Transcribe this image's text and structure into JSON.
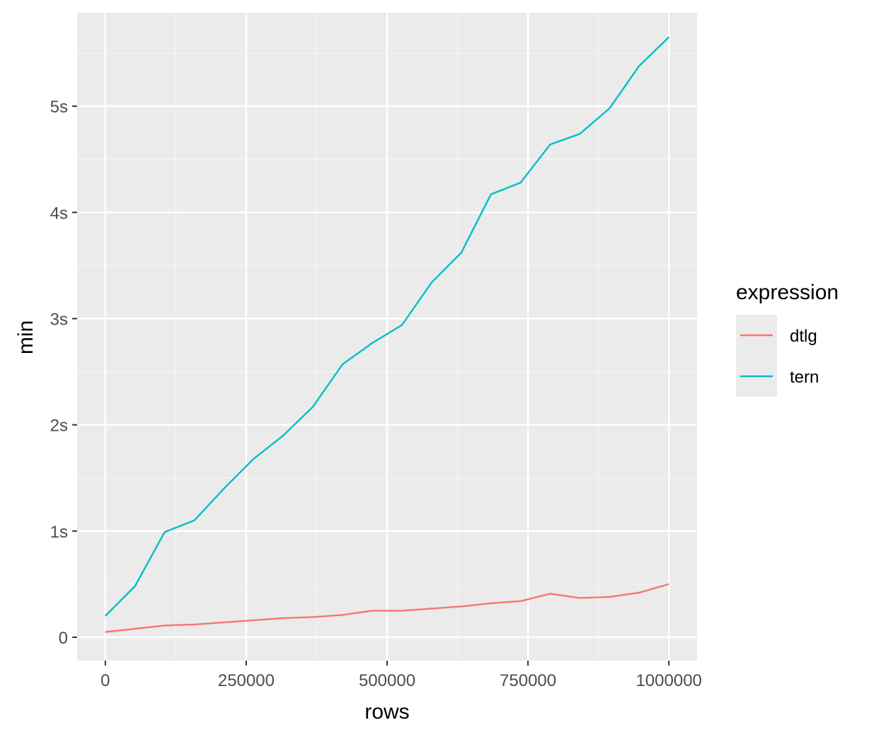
{
  "chart_data": {
    "type": "line",
    "xlabel": "rows",
    "ylabel": "min",
    "xlim": [
      -50000,
      1050000
    ],
    "ylim": [
      -0.22,
      5.88
    ],
    "x_ticks": [
      0,
      250000,
      500000,
      750000,
      1000000
    ],
    "x_tick_labels": [
      "0",
      "250000",
      "500000",
      "750000",
      "1000000"
    ],
    "y_ticks": [
      0,
      1,
      2,
      3,
      4,
      5
    ],
    "y_tick_labels": [
      "0",
      "1s",
      "2s",
      "3s",
      "4s",
      "5s"
    ],
    "grid": true,
    "legend": {
      "title": "expression",
      "position": "right"
    },
    "x": [
      1,
      52632,
      105264,
      157895,
      210527,
      263158,
      315790,
      368422,
      421053,
      473685,
      526316,
      578948,
      631580,
      684211,
      736843,
      789474,
      842106,
      894738,
      947369,
      1000000
    ],
    "series": [
      {
        "name": "dtlg",
        "color": "#F8766D",
        "values": [
          0.05,
          0.08,
          0.11,
          0.12,
          0.14,
          0.16,
          0.18,
          0.19,
          0.21,
          0.25,
          0.25,
          0.27,
          0.29,
          0.32,
          0.34,
          0.41,
          0.37,
          0.38,
          0.42,
          0.5
        ]
      },
      {
        "name": "tern",
        "color": "#00BFC4",
        "values": [
          0.2,
          0.48,
          0.99,
          1.1,
          1.4,
          1.68,
          1.9,
          2.17,
          2.57,
          2.77,
          2.94,
          3.34,
          3.62,
          4.17,
          4.28,
          4.64,
          4.74,
          4.98,
          5.38,
          5.65
        ]
      }
    ]
  }
}
